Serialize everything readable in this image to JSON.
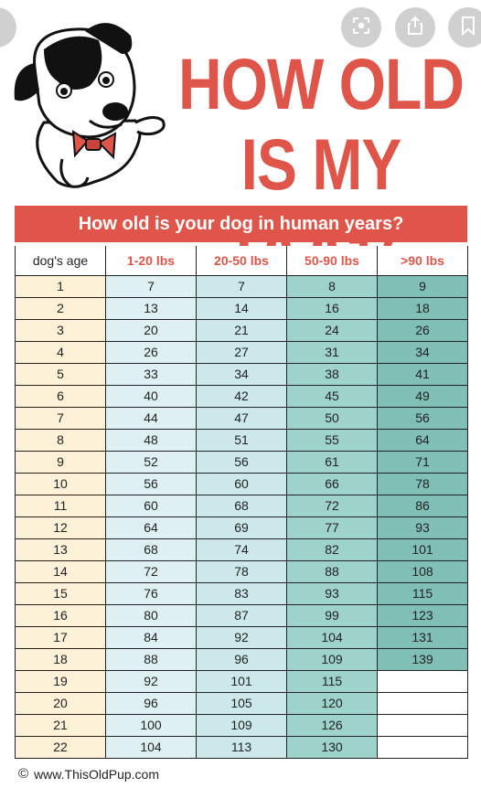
{
  "title_line1": "HOW OLD",
  "title_line2": "IS MY DOG?",
  "banner": "How old is your dog in human years?",
  "headers": [
    "dog's age",
    "1-20 lbs",
    "20-50 lbs",
    "50-90 lbs",
    ">90 lbs"
  ],
  "rows": [
    [
      "1",
      "7",
      "7",
      "8",
      "9"
    ],
    [
      "2",
      "13",
      "14",
      "16",
      "18"
    ],
    [
      "3",
      "20",
      "21",
      "24",
      "26"
    ],
    [
      "4",
      "26",
      "27",
      "31",
      "34"
    ],
    [
      "5",
      "33",
      "34",
      "38",
      "41"
    ],
    [
      "6",
      "40",
      "42",
      "45",
      "49"
    ],
    [
      "7",
      "44",
      "47",
      "50",
      "56"
    ],
    [
      "8",
      "48",
      "51",
      "55",
      "64"
    ],
    [
      "9",
      "52",
      "56",
      "61",
      "71"
    ],
    [
      "10",
      "56",
      "60",
      "66",
      "78"
    ],
    [
      "11",
      "60",
      "68",
      "72",
      "86"
    ],
    [
      "12",
      "64",
      "69",
      "77",
      "93"
    ],
    [
      "13",
      "68",
      "74",
      "82",
      "101"
    ],
    [
      "14",
      "72",
      "78",
      "88",
      "108"
    ],
    [
      "15",
      "76",
      "83",
      "93",
      "115"
    ],
    [
      "16",
      "80",
      "87",
      "99",
      "123"
    ],
    [
      "17",
      "84",
      "92",
      "104",
      "131"
    ],
    [
      "18",
      "88",
      "96",
      "109",
      "139"
    ],
    [
      "19",
      "92",
      "101",
      "115",
      ""
    ],
    [
      "20",
      "96",
      "105",
      "120",
      ""
    ],
    [
      "21",
      "100",
      "109",
      "126",
      ""
    ],
    [
      "22",
      "104",
      "113",
      "130",
      ""
    ]
  ],
  "footer": {
    "copyright_symbol": "©",
    "site": "www.ThisOldPup.com"
  },
  "icons": {
    "back": "chevron-left-icon",
    "lens": "lens-icon",
    "share": "share-icon",
    "save": "bookmark-icon",
    "illustration": "dog-illustration"
  },
  "colors": {
    "accent_red": "#e0554a",
    "age_col": "#fdf1d8",
    "col1": "#dff0f2",
    "col2": "#cde8ea",
    "col3": "#9ed3cb",
    "col4": "#7fbfb5"
  }
}
